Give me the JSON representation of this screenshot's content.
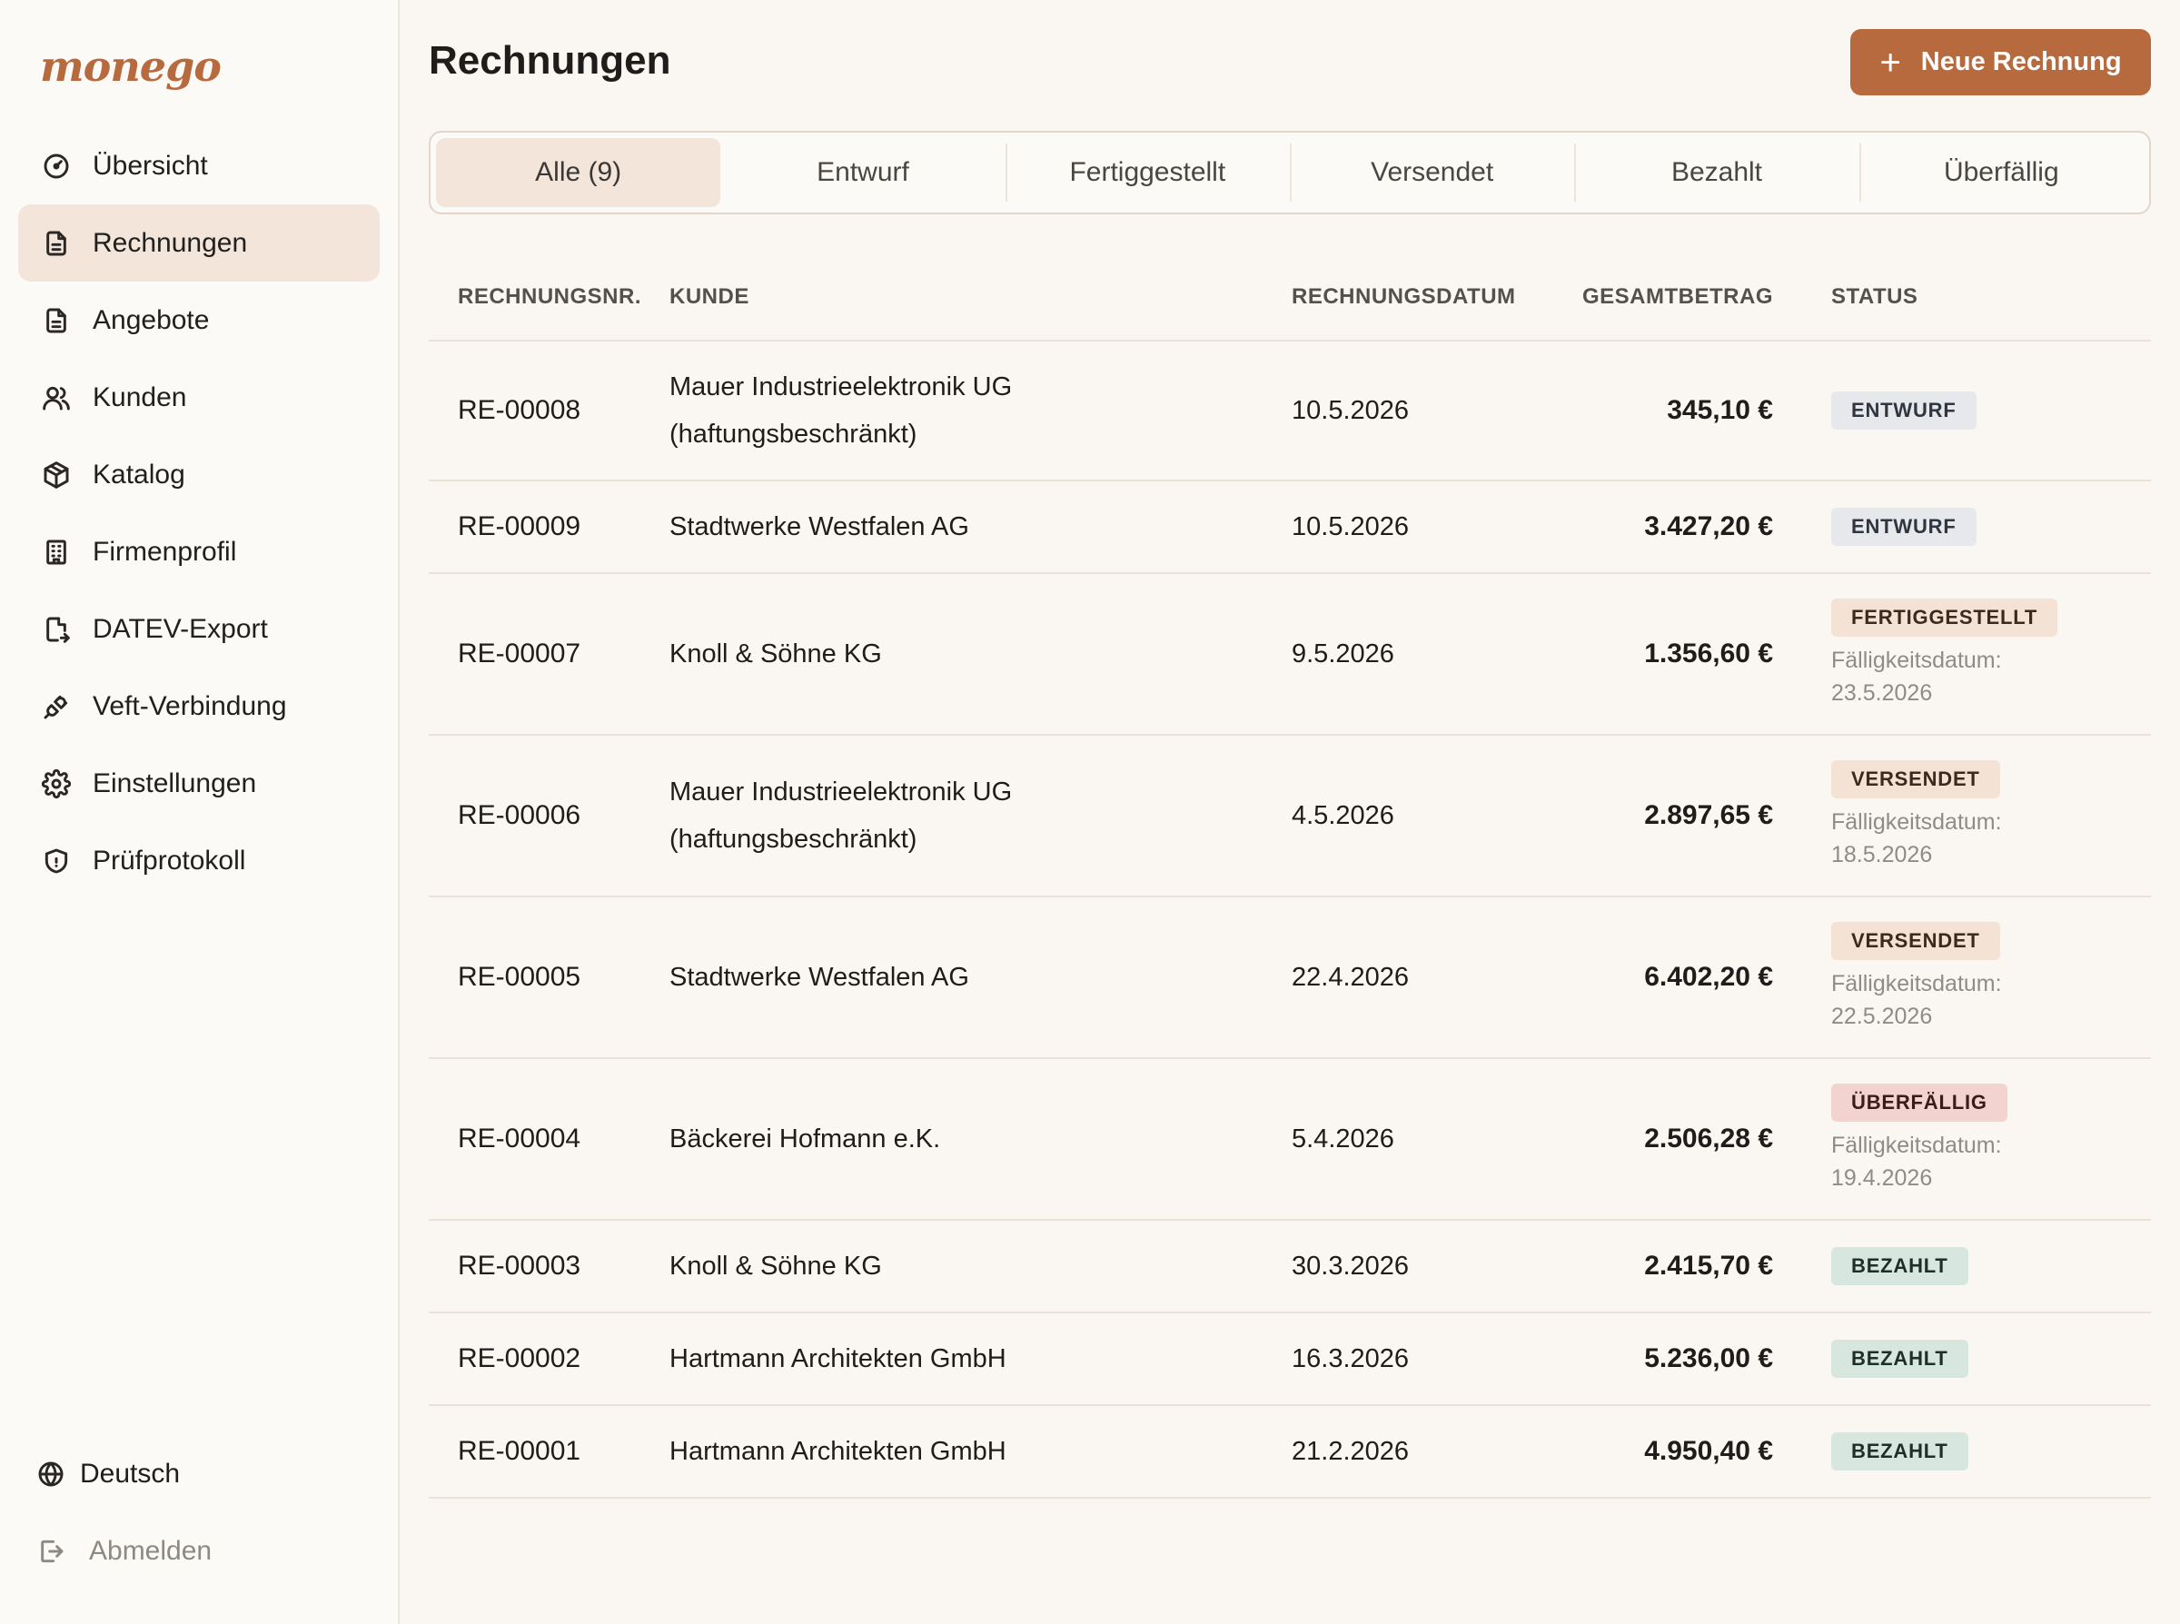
{
  "sidebar": {
    "logo": "monego",
    "items": [
      {
        "label": "Übersicht",
        "icon": "gauge-icon",
        "active": false
      },
      {
        "label": "Rechnungen",
        "icon": "document-icon",
        "active": true
      },
      {
        "label": "Angebote",
        "icon": "document-icon",
        "active": false
      },
      {
        "label": "Kunden",
        "icon": "users-icon",
        "active": false
      },
      {
        "label": "Katalog",
        "icon": "package-icon",
        "active": false
      },
      {
        "label": "Firmenprofil",
        "icon": "building-icon",
        "active": false
      },
      {
        "label": "DATEV-Export",
        "icon": "file-export-icon",
        "active": false
      },
      {
        "label": "Veft-Verbindung",
        "icon": "plug-icon",
        "active": false
      },
      {
        "label": "Einstellungen",
        "icon": "gear-icon",
        "active": false
      },
      {
        "label": "Prüfprotokoll",
        "icon": "shield-icon",
        "active": false
      }
    ],
    "language": "Deutsch",
    "logout": "Abmelden"
  },
  "header": {
    "title": "Rechnungen",
    "new_button_label": "Neue Rechnung"
  },
  "tabs": [
    {
      "label": "Alle (9)",
      "active": true
    },
    {
      "label": "Entwurf",
      "active": false
    },
    {
      "label": "Fertiggestellt",
      "active": false
    },
    {
      "label": "Versendet",
      "active": false
    },
    {
      "label": "Bezahlt",
      "active": false
    },
    {
      "label": "Überfällig",
      "active": false
    }
  ],
  "table": {
    "columns": [
      "RECHNUNGSNR.",
      "KUNDE",
      "RECHNUNGSDATUM",
      "GESAMTBETRAG",
      "STATUS"
    ],
    "rows": [
      {
        "number": "RE-00008",
        "customer_line1": "Mauer Industrieelektronik UG",
        "customer_line2": "(haftungsbeschränkt)",
        "date": "10.5.2026",
        "amount": "345,10 €",
        "status": "ENTWURF",
        "status_type": "entwurf",
        "due_label": "",
        "due_date": ""
      },
      {
        "number": "RE-00009",
        "customer_line1": "Stadtwerke Westfalen AG",
        "customer_line2": "",
        "date": "10.5.2026",
        "amount": "3.427,20 €",
        "status": "ENTWURF",
        "status_type": "entwurf",
        "due_label": "",
        "due_date": ""
      },
      {
        "number": "RE-00007",
        "customer_line1": "Knoll & Söhne KG",
        "customer_line2": "",
        "date": "9.5.2026",
        "amount": "1.356,60 €",
        "status": "FERTIGGESTELLT",
        "status_type": "fertig",
        "due_label": "Fälligkeitsdatum:",
        "due_date": "23.5.2026"
      },
      {
        "number": "RE-00006",
        "customer_line1": "Mauer Industrieelektronik UG",
        "customer_line2": "(haftungsbeschränkt)",
        "date": "4.5.2026",
        "amount": "2.897,65 €",
        "status": "VERSENDET",
        "status_type": "versendet",
        "due_label": "Fälligkeitsdatum:",
        "due_date": "18.5.2026"
      },
      {
        "number": "RE-00005",
        "customer_line1": "Stadtwerke Westfalen AG",
        "customer_line2": "",
        "date": "22.4.2026",
        "amount": "6.402,20 €",
        "status": "VERSENDET",
        "status_type": "versendet",
        "due_label": "Fälligkeitsdatum:",
        "due_date": "22.5.2026"
      },
      {
        "number": "RE-00004",
        "customer_line1": "Bäckerei Hofmann e.K.",
        "customer_line2": "",
        "date": "5.4.2026",
        "amount": "2.506,28 €",
        "status": "ÜBERFÄLLIG",
        "status_type": "ueberfaellig",
        "due_label": "Fälligkeitsdatum:",
        "due_date": "19.4.2026"
      },
      {
        "number": "RE-00003",
        "customer_line1": "Knoll & Söhne KG",
        "customer_line2": "",
        "date": "30.3.2026",
        "amount": "2.415,70 €",
        "status": "BEZAHLT",
        "status_type": "bezahlt",
        "due_label": "",
        "due_date": ""
      },
      {
        "number": "RE-00002",
        "customer_line1": "Hartmann Architekten GmbH",
        "customer_line2": "",
        "date": "16.3.2026",
        "amount": "5.236,00 €",
        "status": "BEZAHLT",
        "status_type": "bezahlt",
        "due_label": "",
        "due_date": ""
      },
      {
        "number": "RE-00001",
        "customer_line1": "Hartmann Architekten GmbH",
        "customer_line2": "",
        "date": "21.2.2026",
        "amount": "4.950,40 €",
        "status": "BEZAHLT",
        "status_type": "bezahlt",
        "due_label": "",
        "due_date": ""
      }
    ]
  },
  "colors": {
    "accent": "#b86a3f",
    "active_bg": "#f3e5da",
    "background": "#faf7f2"
  }
}
